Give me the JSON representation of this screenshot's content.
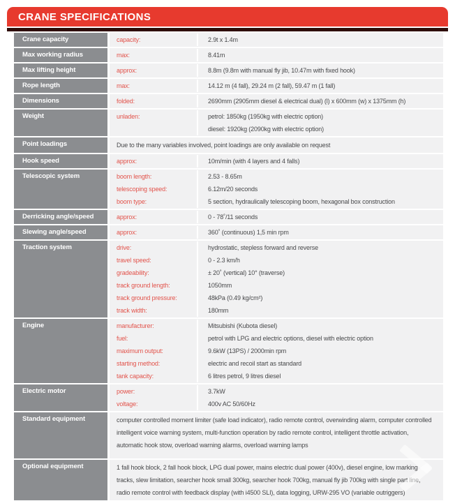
{
  "header": {
    "title": "CRANE SPECIFICATIONS"
  },
  "colors": {
    "banner_red": "#e73a2e",
    "dark_bar": "#2e0d09",
    "label_gray": "#8b8d90",
    "row_background": "#f1f1f2",
    "key_red": "#e2534b",
    "value_text": "#48494b"
  },
  "table": {
    "rows": [
      {
        "label": "Crane capacity",
        "entries": [
          {
            "key": "capacity:",
            "value": "2.9t x 1.4m"
          }
        ]
      },
      {
        "label": "Max working radius",
        "entries": [
          {
            "key": "max:",
            "value": "8.41m"
          }
        ]
      },
      {
        "label": "Max lifting height",
        "entries": [
          {
            "key": "approx:",
            "value": "8.8m (9.8m with manual fly jib, 10.47m with fixed hook)"
          }
        ]
      },
      {
        "label": "Rope length",
        "entries": [
          {
            "key": "max:",
            "value": "14.12 m (4 fall), 29.24 m (2 fall), 59.47 m (1 fall)"
          }
        ]
      },
      {
        "label": "Dimensions",
        "entries": [
          {
            "key": "folded:",
            "value": "2690mm (2905mm diesel & electrical dual) (l) x 600mm (w) x 1375mm (h)"
          }
        ]
      },
      {
        "label": "Weight",
        "entries": [
          {
            "key": "unladen:",
            "value": "petrol: 1850kg (1950kg with electric option)"
          },
          {
            "key": "",
            "value": "diesel: 1920kg (2090kg with electric option)"
          }
        ]
      },
      {
        "label": "Point loadings",
        "full_text": "Due to the many variables involved, point loadings are only available on request"
      },
      {
        "label": "Hook speed",
        "entries": [
          {
            "key": "approx:",
            "value": "10m/min (with 4 layers and 4 falls)"
          }
        ]
      },
      {
        "label": "Telescopic system",
        "entries": [
          {
            "key": "boom length:",
            "value": "2.53 - 8.65m"
          },
          {
            "key": "telescoping speed:",
            "value": "6.12m/20 seconds"
          },
          {
            "key": "boom type:",
            "value": "5 section, hydraulically telescoping boom, hexagonal box construction"
          }
        ]
      },
      {
        "label": "Derricking angle/speed",
        "entries": [
          {
            "key": "approx:",
            "value": "0 - 78˚/11 seconds"
          }
        ]
      },
      {
        "label": "Slewing angle/speed",
        "entries": [
          {
            "key": "approx:",
            "value": "360˚ (continuous) 1,5 min rpm"
          }
        ]
      },
      {
        "label": "Traction system",
        "entries": [
          {
            "key": "drive:",
            "value": "hydrostatic, stepless forward and reverse"
          },
          {
            "key": "travel speed:",
            "value": "0 - 2.3 km/h"
          },
          {
            "key": "gradeability:",
            "value": "± 20˚ (vertical) 10° (traverse)"
          },
          {
            "key": "track ground length:",
            "value": "1050mm"
          },
          {
            "key": "track ground pressure:",
            "value": "48kPa (0.49 kg/cm²)"
          },
          {
            "key": "track width:",
            "value": "180mm"
          }
        ]
      },
      {
        "label": "Engine",
        "entries": [
          {
            "key": "manufacturer:",
            "value": "Mitsubishi (Kubota diesel)"
          },
          {
            "key": "fuel:",
            "value": "petrol with LPG and electric options, diesel with electric option"
          },
          {
            "key": "maximum output:",
            "value": "9.6kW (13PS) / 2000min rpm"
          },
          {
            "key": "starting method:",
            "value": "electric and recoil start as standard"
          },
          {
            "key": "tank capacity:",
            "value": "6 litres petrol, 9 litres diesel"
          }
        ]
      },
      {
        "label": "Electric motor",
        "entries": [
          {
            "key": "power:",
            "value": "3.7kW"
          },
          {
            "key": "voltage:",
            "value": "400v AC 50/60Hz"
          }
        ]
      },
      {
        "label": "Standard equipment",
        "full_text": "computer controlled moment limiter (safe load indicator), radio remote control, overwinding alarm, computer controlled intelligent voice warning system, multi-function operation by radio remote control, intelligent throttle activation, automatic hook stow, overload warning alarms, overload warning lamps"
      },
      {
        "label": "Optional equipment",
        "full_text": "1 fall hook block, 2 fall hook block, LPG dual power, mains electric dual power (400v), diesel engine, low marking tracks, slew limitation, searcher hook small 300kg, searcher hook 700kg, manual fly jib 700kg with single part line, radio remote control with feedback display (with i4500 SLI), data logging, URW-295 VO (variable outriggers)"
      }
    ]
  }
}
